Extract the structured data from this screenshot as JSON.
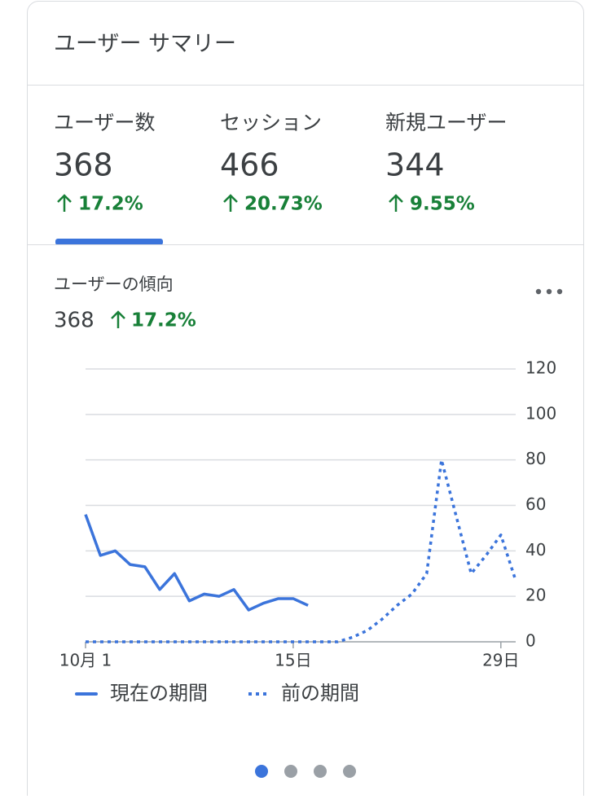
{
  "header": {
    "title": "ユーザー サマリー"
  },
  "metrics": [
    {
      "label": "ユーザー数",
      "value": "368",
      "change": "17.2%"
    },
    {
      "label": "セッション",
      "value": "466",
      "change": "20.73%"
    },
    {
      "label": "新規ユーザー",
      "value": "344",
      "change": "9.55%"
    }
  ],
  "trend": {
    "title": "ユーザーの傾向",
    "value": "368",
    "change": "17.2%"
  },
  "chart_data": {
    "type": "line",
    "x": [
      1,
      2,
      3,
      4,
      5,
      6,
      7,
      8,
      9,
      10,
      11,
      12,
      13,
      14,
      15,
      16,
      17,
      18,
      19,
      20,
      21,
      22,
      23,
      24,
      25,
      26,
      27,
      28,
      29,
      30
    ],
    "xlim": [
      1,
      30
    ],
    "xticks": [
      {
        "value": 1,
        "label": "10月 1"
      },
      {
        "value": 15,
        "label": "15日"
      },
      {
        "value": 29,
        "label": "29日"
      }
    ],
    "ylim": [
      0,
      120
    ],
    "yticks": [
      0,
      20,
      40,
      60,
      80,
      100,
      120
    ],
    "grid": true,
    "series": [
      {
        "name": "現在の期間",
        "color": "#3b74db",
        "dash": false,
        "values": [
          56,
          38,
          40,
          34,
          33,
          23,
          30,
          18,
          21,
          20,
          23,
          14,
          17,
          19,
          19,
          16,
          null,
          null,
          null,
          null,
          null,
          null,
          null,
          null,
          null,
          null,
          null,
          null,
          null,
          null
        ]
      },
      {
        "name": "前の期間",
        "color": "#3b74db",
        "dash": true,
        "values": [
          0,
          0,
          0,
          0,
          0,
          0,
          0,
          0,
          0,
          0,
          0,
          0,
          0,
          0,
          0,
          0,
          0,
          0,
          2,
          5,
          10,
          16,
          21,
          30,
          80,
          55,
          30,
          38,
          47,
          27
        ]
      }
    ]
  }
}
